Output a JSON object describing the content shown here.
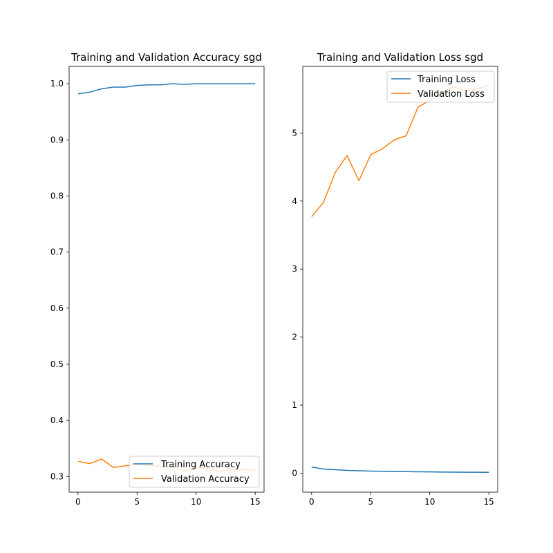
{
  "chart_data": [
    {
      "type": "line",
      "title": "Training and Validation Accuracy sgd",
      "xlabel": "",
      "ylabel": "",
      "xlim": [
        -0.75,
        15.75
      ],
      "ylim": [
        0.272,
        1.031
      ],
      "x_ticks": [
        0,
        5,
        10,
        15
      ],
      "y_ticks": [
        0.3,
        0.4,
        0.5,
        0.6,
        0.7,
        0.8,
        0.9,
        1.0
      ],
      "x_tick_labels": [
        "0",
        "5",
        "10",
        "15"
      ],
      "y_tick_labels": [
        "0.3",
        "0.4",
        "0.5",
        "0.6",
        "0.7",
        "0.8",
        "0.9",
        "1.0"
      ],
      "grid": false,
      "legend_position": "lower-right",
      "x": [
        0,
        1,
        2,
        3,
        4,
        5,
        6,
        7,
        8,
        9,
        10,
        11,
        12,
        13,
        14,
        15
      ],
      "series": [
        {
          "name": "Training Accuracy",
          "color": "#1f77b4",
          "values": [
            0.982,
            0.985,
            0.991,
            0.994,
            0.994,
            0.997,
            0.998,
            0.998,
            1.0,
            0.999,
            1.0,
            1.0,
            1.0,
            1.0,
            1.0,
            1.0
          ]
        },
        {
          "name": "Validation Accuracy",
          "color": "#ff7f0e",
          "values": [
            0.327,
            0.323,
            0.331,
            0.316,
            0.319,
            0.322,
            0.32,
            0.318,
            0.317,
            0.31,
            0.316,
            0.314,
            0.309,
            0.312,
            0.313,
            0.311
          ]
        }
      ]
    },
    {
      "type": "line",
      "title": "Training and Validation Loss sgd",
      "xlabel": "",
      "ylabel": "",
      "xlim": [
        -0.75,
        15.75
      ],
      "ylim": [
        -0.28,
        5.98
      ],
      "x_ticks": [
        0,
        5,
        10,
        15
      ],
      "y_ticks": [
        0,
        1,
        2,
        3,
        4,
        5
      ],
      "x_tick_labels": [
        "0",
        "5",
        "10",
        "15"
      ],
      "y_tick_labels": [
        "0",
        "1",
        "2",
        "3",
        "4",
        "5"
      ],
      "grid": false,
      "legend_position": "upper-right",
      "x": [
        0,
        1,
        2,
        3,
        4,
        5,
        6,
        7,
        8,
        9,
        10,
        11,
        12,
        13,
        14,
        15
      ],
      "series": [
        {
          "name": "Training Loss",
          "color": "#1f77b4",
          "values": [
            0.09,
            0.06,
            0.05,
            0.04,
            0.035,
            0.03,
            0.027,
            0.024,
            0.022,
            0.02,
            0.018,
            0.016,
            0.015,
            0.014,
            0.013,
            0.012
          ]
        },
        {
          "name": "Validation Loss",
          "color": "#ff7f0e",
          "values": [
            3.77,
            3.98,
            4.42,
            4.67,
            4.3,
            4.68,
            4.77,
            4.9,
            4.96,
            5.38,
            5.48,
            5.6,
            5.68,
            5.62,
            5.65,
            5.7
          ]
        }
      ]
    }
  ]
}
